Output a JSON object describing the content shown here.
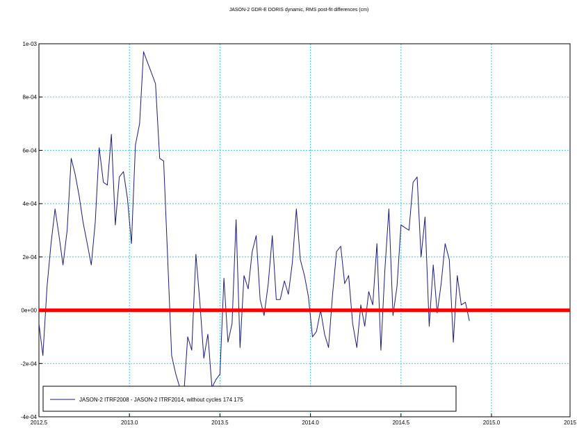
{
  "chart_data": {
    "type": "line",
    "title": "JASON-2 GDR-E DORIS dynamic, RMS post-fit differences (cm)",
    "xlabel": "",
    "ylabel": "",
    "xlim": [
      2012.5,
      2015.0
    ],
    "ylim": [
      -0.0004,
      0.001
    ],
    "x_ticks": [
      "2012.5",
      "2013.0",
      "2013.5",
      "2014.0",
      "2014.5",
      "2015.0",
      "2015"
    ],
    "y_ticks": [
      "1e-03",
      "8e-04",
      "6e-04",
      "4e-04",
      "2e-04",
      "0e+00",
      "-2e-04",
      "-4e-04"
    ],
    "grid": true,
    "legend_position": "bottom-left",
    "reference_line": {
      "y": 0,
      "color": "#ff0000"
    },
    "series": [
      {
        "name": "JASON-2 ITRF2008 - JASON-2 ITRF2014, without cycles 174 175",
        "color": "#1a1a80",
        "points": [
          [
            2012.5,
            -5e-05
          ],
          [
            2012.522,
            -0.00017
          ],
          [
            2012.545,
            9e-05
          ],
          [
            2012.567,
            0.00025
          ],
          [
            2012.589,
            0.00038
          ],
          [
            2012.611,
            0.00028
          ],
          [
            2012.633,
            0.00017
          ],
          [
            2012.656,
            0.0003
          ],
          [
            2012.678,
            0.00057
          ],
          [
            2012.7,
            0.00051
          ],
          [
            2012.722,
            0.00043
          ],
          [
            2012.744,
            0.00033
          ],
          [
            2012.767,
            0.00025
          ],
          [
            2012.789,
            0.00017
          ],
          [
            2012.811,
            0.00033
          ],
          [
            2012.833,
            0.00061
          ],
          [
            2012.856,
            0.00048
          ],
          [
            2012.878,
            0.00047
          ],
          [
            2012.9,
            0.00066
          ],
          [
            2012.922,
            0.00032
          ],
          [
            2012.944,
            0.0005
          ],
          [
            2012.967,
            0.00052
          ],
          [
            2012.989,
            0.00042
          ],
          [
            2013.011,
            0.00025
          ],
          [
            2013.033,
            0.00062
          ],
          [
            2013.056,
            0.0007
          ],
          [
            2013.078,
            0.00097
          ],
          [
            2013.1,
            0.00093
          ],
          [
            2013.122,
            0.00089
          ],
          [
            2013.144,
            0.00085
          ],
          [
            2013.167,
            0.00057
          ],
          [
            2013.189,
            0.00056
          ],
          [
            2013.211,
            0.0002
          ],
          [
            2013.233,
            -0.00017
          ],
          [
            2013.256,
            -0.00024
          ],
          [
            2013.278,
            -0.00029
          ],
          [
            2013.3,
            -0.00032
          ],
          [
            2013.322,
            -0.0001
          ],
          [
            2013.344,
            -0.00015
          ],
          [
            2013.367,
            0.00021
          ],
          [
            2013.389,
            3e-05
          ],
          [
            2013.411,
            -0.00018
          ],
          [
            2013.433,
            -9e-05
          ],
          [
            2013.456,
            -0.00029
          ],
          [
            2013.478,
            -0.00026
          ],
          [
            2013.5,
            -0.00024
          ],
          [
            2013.522,
            0.00012
          ],
          [
            2013.544,
            -0.00012
          ],
          [
            2013.567,
            -5e-05
          ],
          [
            2013.589,
            0.00034
          ],
          [
            2013.611,
            -0.00014
          ],
          [
            2013.633,
            0.00013
          ],
          [
            2013.656,
            8e-05
          ],
          [
            2013.678,
            0.00022
          ],
          [
            2013.7,
            0.00028
          ],
          [
            2013.722,
            4e-05
          ],
          [
            2013.744,
            -2e-05
          ],
          [
            2013.767,
            0.0001
          ],
          [
            2013.789,
            0.00028
          ],
          [
            2013.811,
            4e-05
          ],
          [
            2013.833,
            4e-05
          ],
          [
            2013.856,
            0.00011
          ],
          [
            2013.878,
            6e-05
          ],
          [
            2013.9,
            0.00018
          ],
          [
            2013.922,
            0.00038
          ],
          [
            2013.944,
            0.00019
          ],
          [
            2013.967,
            0.00013
          ],
          [
            2013.989,
            5e-05
          ],
          [
            2014.011,
            -0.0001
          ],
          [
            2014.033,
            -8e-05
          ],
          [
            2014.056,
            0.0
          ],
          [
            2014.078,
            -9e-05
          ],
          [
            2014.1,
            -0.00014
          ],
          [
            2014.122,
            6e-05
          ],
          [
            2014.144,
            0.00022
          ],
          [
            2014.167,
            0.00024
          ],
          [
            2014.189,
            0.0001
          ],
          [
            2014.211,
            0.00013
          ],
          [
            2014.233,
            -5e-05
          ],
          [
            2014.256,
            -0.00014
          ],
          [
            2014.278,
            2e-05
          ],
          [
            2014.3,
            -6e-05
          ],
          [
            2014.322,
            7e-05
          ],
          [
            2014.344,
            2e-05
          ],
          [
            2014.367,
            0.00025
          ],
          [
            2014.389,
            -0.00015
          ],
          [
            2014.411,
            0.00015
          ],
          [
            2014.433,
            0.00038
          ],
          [
            2014.456,
            -2e-05
          ],
          [
            2014.478,
            9e-05
          ],
          [
            2014.5,
            0.00032
          ],
          [
            2014.522,
            0.00031
          ],
          [
            2014.544,
            0.0003
          ],
          [
            2014.567,
            0.00048
          ],
          [
            2014.589,
            0.0005
          ],
          [
            2014.611,
            0.0002
          ],
          [
            2014.633,
            0.00035
          ],
          [
            2014.656,
            -6e-05
          ],
          [
            2014.678,
            0.00017
          ],
          [
            2014.7,
            -1e-05
          ],
          [
            2014.722,
            0.0001
          ],
          [
            2014.744,
            0.00025
          ],
          [
            2014.767,
            0.00019
          ],
          [
            2014.789,
            -0.00012
          ],
          [
            2014.811,
            0.00013
          ],
          [
            2014.833,
            2e-05
          ],
          [
            2014.856,
            3e-05
          ],
          [
            2014.878,
            -4e-05
          ]
        ]
      }
    ]
  }
}
